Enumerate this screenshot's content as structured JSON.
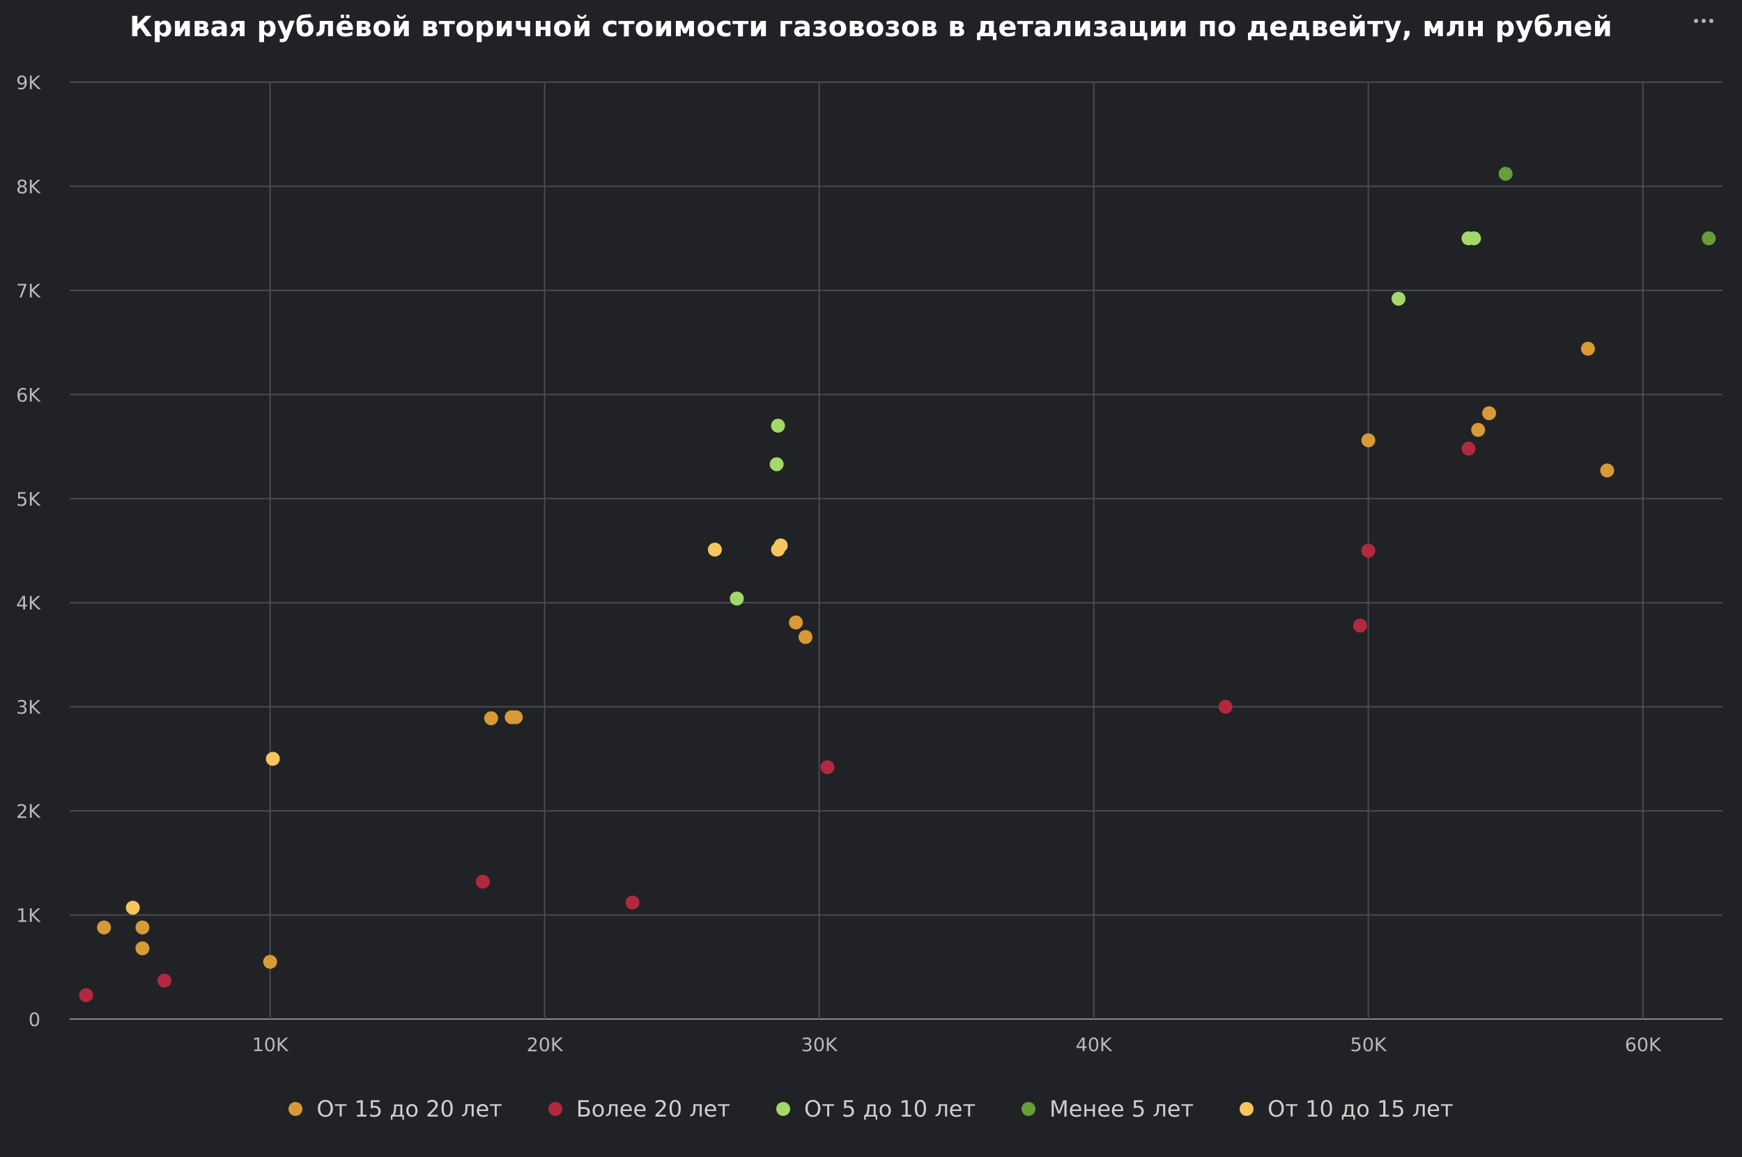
{
  "menu": {
    "icon": "more-dots-icon"
  },
  "chart_data": {
    "type": "scatter",
    "title": "Кривая рублёвой вторичной стоимости газовозов в детализации по дедвейту, млн рублей",
    "xlabel": "",
    "ylabel": "",
    "xlim": [
      2700,
      62900
    ],
    "ylim": [
      0,
      9000
    ],
    "x_ticks": [
      10000,
      20000,
      30000,
      40000,
      50000,
      60000
    ],
    "x_tick_labels": [
      "10K",
      "20K",
      "30K",
      "40K",
      "50K",
      "60K"
    ],
    "y_ticks": [
      0,
      1000,
      2000,
      3000,
      4000,
      5000,
      6000,
      7000,
      8000,
      9000
    ],
    "y_tick_labels": [
      "0",
      "1K",
      "2K",
      "3K",
      "4K",
      "5K",
      "6K",
      "7K",
      "8K",
      "9K"
    ],
    "grid": true,
    "legend_position": "bottom",
    "series": [
      {
        "name": "От 15 до 20 лет",
        "color": "#d89a35",
        "points": [
          [
            3950,
            880
          ],
          [
            5350,
            880
          ],
          [
            5350,
            680
          ],
          [
            10000,
            550
          ],
          [
            18050,
            2890
          ],
          [
            18800,
            2900
          ],
          [
            18950,
            2900
          ],
          [
            29150,
            3810
          ],
          [
            29500,
            3670
          ],
          [
            50000,
            5560
          ],
          [
            54000,
            5660
          ],
          [
            54400,
            5820
          ],
          [
            58000,
            6440
          ],
          [
            58700,
            5270
          ]
        ]
      },
      {
        "name": "Более 20 лет",
        "color": "#b2293f",
        "points": [
          [
            3300,
            230
          ],
          [
            6150,
            370
          ],
          [
            17750,
            1320
          ],
          [
            23200,
            1120
          ],
          [
            30300,
            2420
          ],
          [
            44800,
            3000
          ],
          [
            49700,
            3780
          ],
          [
            50000,
            4500
          ],
          [
            53650,
            5480
          ]
        ]
      },
      {
        "name": "От 5 до 10 лет",
        "color": "#a5d86a",
        "points": [
          [
            27000,
            4040
          ],
          [
            28450,
            5330
          ],
          [
            28500,
            5700
          ],
          [
            51100,
            6920
          ],
          [
            53650,
            7500
          ],
          [
            53850,
            7500
          ]
        ]
      },
      {
        "name": "Менее 5 лет",
        "color": "#669e3a",
        "points": [
          [
            55000,
            8120
          ],
          [
            62400,
            7500
          ]
        ]
      },
      {
        "name": "От 10 до 15 лет",
        "color": "#f6c65c",
        "points": [
          [
            5000,
            1070
          ],
          [
            10100,
            2500
          ],
          [
            26200,
            4510
          ],
          [
            28500,
            4510
          ],
          [
            28600,
            4550
          ]
        ]
      }
    ]
  }
}
